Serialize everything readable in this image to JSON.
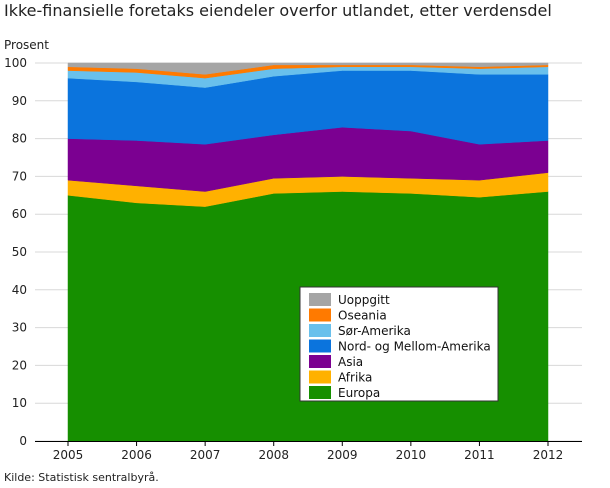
{
  "title": "Ikke-finansielle foretaks eiendeler overfor utlandet, etter verdensdel",
  "source": "Kilde: Statistisk sentralbyrå.",
  "chart_data": {
    "type": "area",
    "stacked": true,
    "ylabel": "Prosent",
    "xlabel": "",
    "ylim": [
      0,
      100
    ],
    "yticks": [
      0,
      10,
      20,
      30,
      40,
      50,
      60,
      70,
      80,
      90,
      100
    ],
    "grid": "horizontal",
    "legend_position": "center-right, inside plot",
    "x": [
      "2005",
      "2006",
      "2007",
      "2008",
      "2009",
      "2010",
      "2011",
      "2012"
    ],
    "series": [
      {
        "name": "Europa",
        "color": "#168f00",
        "values": [
          65.0,
          63.0,
          62.0,
          65.5,
          66.0,
          65.5,
          64.5,
          66.0
        ]
      },
      {
        "name": "Afrika",
        "color": "#ffb100",
        "values": [
          4.0,
          4.5,
          4.0,
          4.0,
          4.0,
          4.0,
          4.5,
          5.0
        ]
      },
      {
        "name": "Asia",
        "color": "#7b0091",
        "values": [
          11.0,
          12.0,
          12.5,
          11.5,
          13.0,
          12.5,
          9.5,
          8.5
        ]
      },
      {
        "name": "Nord- og Mellom-Amerika",
        "color": "#0b74dd",
        "values": [
          16.0,
          15.5,
          15.0,
          15.5,
          15.0,
          16.0,
          18.5,
          17.5
        ]
      },
      {
        "name": "Sør-Amerika",
        "color": "#69c0ec",
        "values": [
          2.0,
          2.5,
          2.5,
          2.0,
          1.0,
          1.0,
          1.5,
          2.0
        ]
      },
      {
        "name": "Oseania",
        "color": "#ff7a00",
        "values": [
          1.0,
          1.0,
          1.0,
          1.0,
          0.5,
          0.5,
          0.5,
          0.5
        ]
      },
      {
        "name": "Uoppgitt",
        "color": "#a5a5a5",
        "values": [
          1.0,
          1.5,
          3.0,
          0.5,
          0.5,
          0.5,
          1.0,
          0.5
        ]
      }
    ]
  }
}
